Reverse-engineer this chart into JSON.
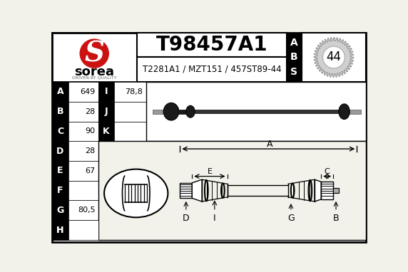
{
  "title": "T98457A1",
  "subtitle": "T2281A1 / MZT151 / 457ST89-44",
  "brand": "sorea",
  "brand_tagline": "DRIVEN BY QUALITY",
  "abs_number": "44",
  "params_left": [
    {
      "label": "A",
      "value": "649"
    },
    {
      "label": "B",
      "value": "28"
    },
    {
      "label": "C",
      "value": "90"
    },
    {
      "label": "D",
      "value": "28"
    },
    {
      "label": "E",
      "value": "67"
    },
    {
      "label": "F",
      "value": ""
    },
    {
      "label": "G",
      "value": "80,5"
    },
    {
      "label": "H",
      "value": ""
    }
  ],
  "params_right": [
    {
      "label": "I",
      "value": "78,8"
    },
    {
      "label": "J",
      "value": ""
    },
    {
      "label": "K",
      "value": ""
    }
  ],
  "bg_color": "#f2f2ea",
  "white": "#ffffff",
  "black": "#000000"
}
